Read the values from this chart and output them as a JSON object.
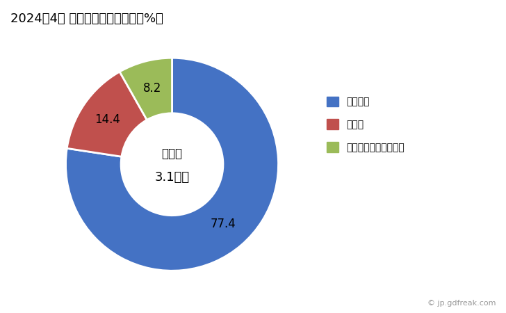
{
  "title": "2024年4月 輸出相手国のシェア（%）",
  "labels": [
    "フィジー",
    "コモロ",
    "サントメ・プリンシペ"
  ],
  "values": [
    77.4,
    14.4,
    8.2
  ],
  "colors": [
    "#4472C4",
    "#C0504D",
    "#9BBB59"
  ],
  "center_text_line1": "総　額",
  "center_text_line2": "3.1億円",
  "watermark": "© jp.gdfreak.com",
  "background_color": "#FFFFFF"
}
